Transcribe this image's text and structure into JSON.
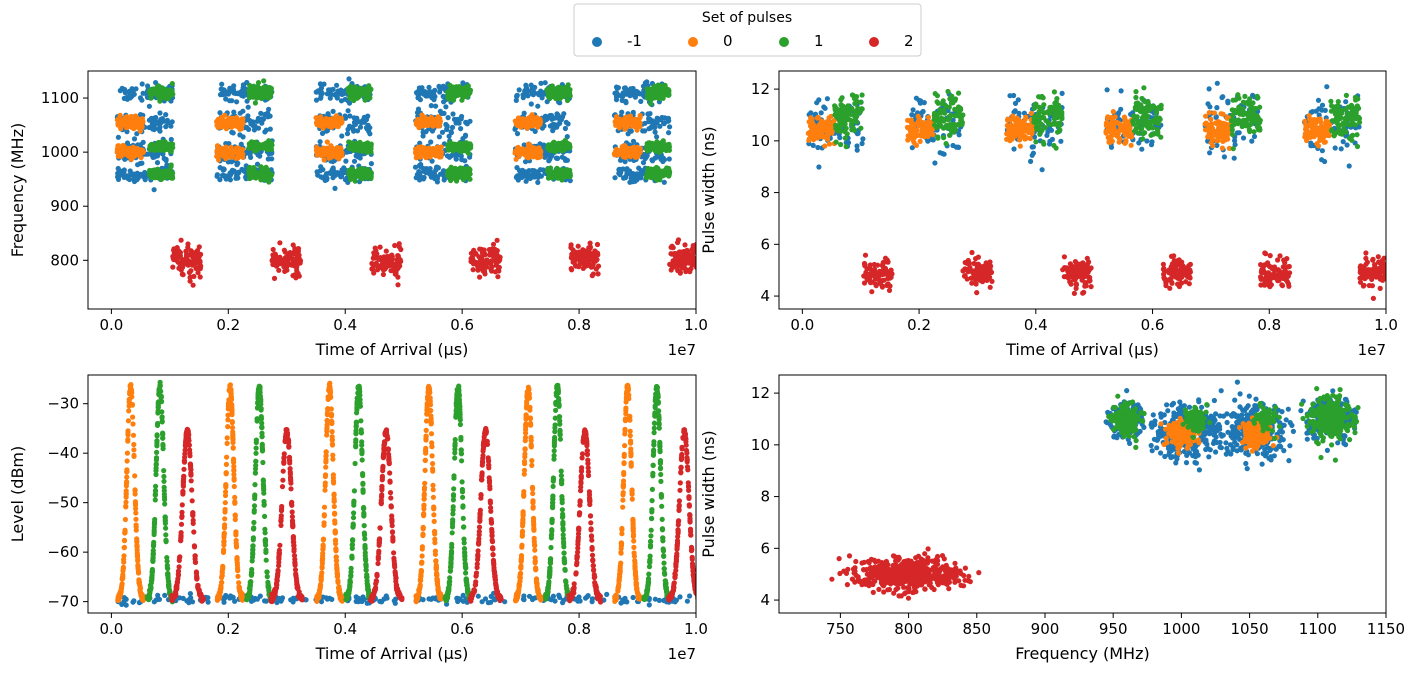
{
  "legend": {
    "title": "Set of pulses",
    "entries": [
      {
        "label": "-1",
        "color": "#1f77b4"
      },
      {
        "label": "0",
        "color": "#ff7f0e"
      },
      {
        "label": "1",
        "color": "#2ca02c"
      },
      {
        "label": "2",
        "color": "#d62728"
      }
    ]
  },
  "chart_data": [
    {
      "type": "scatter",
      "title": "",
      "xlabel": "Time of Arrival (µs)",
      "ylabel": "Frequency (MHz)",
      "xlim": [
        -0.04,
        1.0
      ],
      "ylim": [
        710,
        1150
      ],
      "x_offset_text": "1e7",
      "xticks": [
        0.0,
        0.2,
        0.4,
        0.6,
        0.8,
        1.0
      ],
      "xtick_labels": [
        "0.0",
        "0.2",
        "0.4",
        "0.6",
        "0.8",
        "1.0"
      ],
      "yticks": [
        800,
        900,
        1000,
        1100
      ],
      "ytick_labels": [
        "800",
        "900",
        "1000",
        "1100"
      ],
      "group_starts": [
        0.01,
        0.18,
        0.35,
        0.52,
        0.69,
        0.86
      ],
      "series": [
        {
          "name": "0",
          "color": "#ff7f0e",
          "clusters": [
            {
              "dt": [
                0.0,
                0.045
              ],
              "y": 1055,
              "spread": 5
            },
            {
              "dt": [
                0.0,
                0.045
              ],
              "y": 1000,
              "spread": 5
            }
          ]
        },
        {
          "name": "1",
          "color": "#2ca02c",
          "clusters": [
            {
              "dt": [
                0.055,
                0.095
              ],
              "y": 1110,
              "spread": 6
            },
            {
              "dt": [
                0.055,
                0.095
              ],
              "y": 1010,
              "spread": 4
            },
            {
              "dt": [
                0.055,
                0.095
              ],
              "y": 960,
              "spread": 5
            }
          ]
        },
        {
          "name": "-1",
          "color": "#1f77b4",
          "clusters": [
            {
              "dt": [
                0.0,
                0.095
              ],
              "y": 1055,
              "spread": 10
            },
            {
              "dt": [
                0.0,
                0.095
              ],
              "y": 1000,
              "spread": 10
            },
            {
              "dt": [
                0.0,
                0.095
              ],
              "y": 1110,
              "spread": 8
            },
            {
              "dt": [
                0.0,
                0.095
              ],
              "y": 960,
              "spread": 7
            }
          ]
        },
        {
          "name": "2",
          "color": "#d62728",
          "clusters": [
            {
              "dt": [
                0.095,
                0.145
              ],
              "y": 800,
              "spread": 14
            }
          ]
        }
      ]
    },
    {
      "type": "scatter",
      "title": "",
      "xlabel": "Time of Arrival (µs)",
      "ylabel": "Pulse width (ns)",
      "xlim": [
        -0.04,
        1.0
      ],
      "ylim": [
        3.5,
        12.7
      ],
      "x_offset_text": "1e7",
      "xticks": [
        0.0,
        0.2,
        0.4,
        0.6,
        0.8,
        1.0
      ],
      "xtick_labels": [
        "0.0",
        "0.2",
        "0.4",
        "0.6",
        "0.8",
        "1.0"
      ],
      "yticks": [
        4,
        6,
        8,
        10,
        12
      ],
      "ytick_labels": [
        "4",
        "6",
        "8",
        "10",
        "12"
      ],
      "group_starts": [
        0.01,
        0.18,
        0.35,
        0.52,
        0.69,
        0.86
      ],
      "series": [
        {
          "name": "-1",
          "color": "#1f77b4",
          "clusters": [
            {
              "dt": [
                0.0,
                0.095
              ],
              "y": 10.6,
              "spread": 0.55
            }
          ]
        },
        {
          "name": "0",
          "color": "#ff7f0e",
          "clusters": [
            {
              "dt": [
                0.0,
                0.045
              ],
              "y": 10.45,
              "spread": 0.25
            }
          ]
        },
        {
          "name": "1",
          "color": "#2ca02c",
          "clusters": [
            {
              "dt": [
                0.045,
                0.095
              ],
              "y": 10.95,
              "spread": 0.4
            }
          ]
        },
        {
          "name": "2",
          "color": "#d62728",
          "clusters": [
            {
              "dt": [
                0.095,
                0.145
              ],
              "y": 4.9,
              "spread": 0.28
            }
          ]
        }
      ]
    },
    {
      "type": "scatter",
      "title": "",
      "xlabel": "Time of Arrival (µs)",
      "ylabel": "Level (dBm)",
      "xlim": [
        -0.04,
        1.0
      ],
      "ylim": [
        -72.3,
        -24.2
      ],
      "x_offset_text": "1e7",
      "xticks": [
        0.0,
        0.2,
        0.4,
        0.6,
        0.8,
        1.0
      ],
      "xtick_labels": [
        "0.0",
        "0.2",
        "0.4",
        "0.6",
        "0.8",
        "1.0"
      ],
      "yticks": [
        -70,
        -60,
        -50,
        -40,
        -30
      ],
      "ytick_labels": [
        "−70",
        "−60",
        "−50",
        "−40",
        "−30"
      ],
      "group_starts": [
        0.01,
        0.18,
        0.35,
        0.52,
        0.69,
        0.86
      ],
      "floor": -69.5,
      "series": [
        {
          "name": "-1",
          "color": "#1f77b4",
          "peaks": []
        },
        {
          "name": "0",
          "color": "#ff7f0e",
          "peaks": [
            {
              "dt": 0.023,
              "halfwidth": 0.022,
              "top": -26.5
            }
          ]
        },
        {
          "name": "1",
          "color": "#2ca02c",
          "peaks": [
            {
              "dt": 0.073,
              "halfwidth": 0.022,
              "top": -26.5
            }
          ]
        },
        {
          "name": "2",
          "color": "#d62728",
          "peaks": [
            {
              "dt": 0.12,
              "halfwidth": 0.027,
              "top": -35.5
            }
          ]
        }
      ]
    },
    {
      "type": "scatter",
      "title": "",
      "xlabel": "Frequency (MHz)",
      "ylabel": "Pulse width (ns)",
      "xlim": [
        705,
        1150
      ],
      "ylim": [
        3.5,
        12.7
      ],
      "xticks": [
        750,
        800,
        850,
        900,
        950,
        1000,
        1050,
        1100,
        1150
      ],
      "xtick_labels": [
        "750",
        "800",
        "850",
        "900",
        "950",
        "1000",
        "1050",
        "1100",
        "1150"
      ],
      "yticks": [
        4,
        6,
        8,
        10,
        12
      ],
      "ytick_labels": [
        "4",
        "6",
        "8",
        "10",
        "12"
      ],
      "series": [
        {
          "name": "-1",
          "color": "#1f77b4",
          "clusters": [
            {
              "cx": 1003,
              "cy": 10.5,
              "sx": 13,
              "sy": 0.5,
              "n": 320
            },
            {
              "cx": 1055,
              "cy": 10.5,
              "sx": 12,
              "sy": 0.5,
              "n": 320
            },
            {
              "cx": 1110,
              "cy": 11.0,
              "sx": 9,
              "sy": 0.4,
              "n": 200
            },
            {
              "cx": 960,
              "cy": 11.0,
              "sx": 7,
              "sy": 0.35,
              "n": 120
            }
          ]
        },
        {
          "name": "0",
          "color": "#ff7f0e",
          "clusters": [
            {
              "cx": 1000,
              "cy": 10.45,
              "sx": 5,
              "sy": 0.25,
              "n": 160
            },
            {
              "cx": 1055,
              "cy": 10.45,
              "sx": 5,
              "sy": 0.25,
              "n": 160
            }
          ]
        },
        {
          "name": "1",
          "color": "#2ca02c",
          "clusters": [
            {
              "cx": 1110,
              "cy": 11.0,
              "sx": 7,
              "sy": 0.4,
              "n": 260
            },
            {
              "cx": 960,
              "cy": 11.0,
              "sx": 5,
              "sy": 0.3,
              "n": 160
            },
            {
              "cx": 1010,
              "cy": 11.0,
              "sx": 4,
              "sy": 0.25,
              "n": 80
            },
            {
              "cx": 1062,
              "cy": 11.0,
              "sx": 4,
              "sy": 0.25,
              "n": 60
            }
          ]
        },
        {
          "name": "2",
          "color": "#d62728",
          "clusters": [
            {
              "cx": 800,
              "cy": 5.0,
              "sx": 18,
              "sy": 0.3,
              "n": 600
            }
          ]
        }
      ]
    }
  ]
}
